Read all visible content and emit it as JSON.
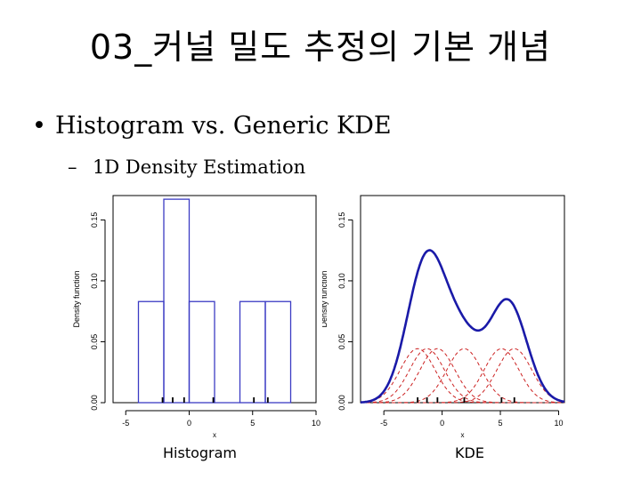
{
  "slide": {
    "title": "03_커널 밀도 추정의 기본 개념",
    "bullet": "Histogram vs. Generic KDE",
    "subbullet": "1D Density Estimation"
  },
  "chart_data": [
    {
      "type": "bar",
      "caption": "Histogram",
      "xlabel": "x",
      "ylabel": "Density function",
      "xlim": [
        -6,
        10
      ],
      "ylim": [
        0,
        0.17
      ],
      "xticks": [
        "-5",
        "0",
        "5",
        "10"
      ],
      "yticks": [
        "0.00",
        "0.05",
        "0.10",
        "0.15"
      ],
      "bins": [
        {
          "x0": -4,
          "x1": -2,
          "y": 0.083
        },
        {
          "x0": -2,
          "x1": 0,
          "y": 0.167
        },
        {
          "x0": 0,
          "x1": 2,
          "y": 0.083
        },
        {
          "x0": 2,
          "x1": 4,
          "y": 0.0
        },
        {
          "x0": 4,
          "x1": 6,
          "y": 0.083
        },
        {
          "x0": 6,
          "x1": 8,
          "y": 0.083
        }
      ],
      "rug": [
        -2.1,
        -1.3,
        -0.4,
        1.9,
        5.1,
        6.2
      ],
      "bar_color": "#3b3bc4"
    },
    {
      "type": "line",
      "caption": "KDE",
      "xlabel": "x",
      "ylabel": "Density function",
      "xlim": [
        -7,
        10.5
      ],
      "ylim": [
        0,
        0.17
      ],
      "xticks": [
        "-5",
        "0",
        "5",
        "10"
      ],
      "yticks": [
        "0.00",
        "0.05",
        "0.10",
        "0.15"
      ],
      "points": [
        -2.1,
        -1.3,
        -0.4,
        1.9,
        5.1,
        6.2
      ],
      "bandwidth": 1.5,
      "kernel_peak": 0.0443,
      "kde_color": "#1a1aa8",
      "kernel_color": "#cc2222"
    }
  ]
}
